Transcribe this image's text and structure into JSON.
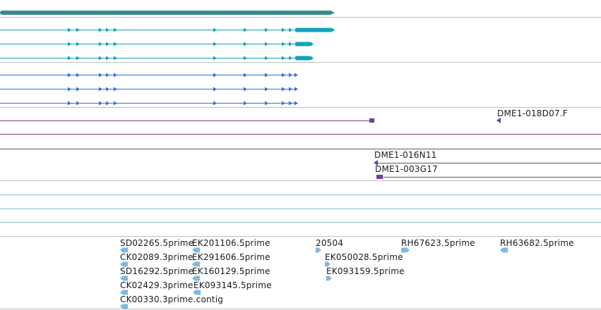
{
  "colors": {
    "separator": "#bfbfbf",
    "gene_bar": "#3a8a8a",
    "transcript_main": "#0fa3b8",
    "transcript_alt": "#2f6fd8",
    "construct": "#6b3fa0",
    "construct_line": "#7a4a7a",
    "empty_track_line": "#7ec3cf",
    "est": "#7fb8e0"
  },
  "clone_labels": {
    "dme1_018d07_f": "DME1-018D07.F",
    "dme1_016n11": "DME1-016N11",
    "dme1_003g17": "DME1-003G17"
  },
  "est_labels": {
    "sd02265": "SD02265.5prime",
    "ek201106": "EK201106.5prime",
    "n20504": "20504",
    "rh67623": "RH67623.5prime",
    "rh63682": "RH63682.5prime",
    "ck02089": "CK02089.3prime",
    "ek291606": "EK291606.5prime",
    "ek050028": "EK050028.5prime",
    "sd16292": "SD16292.5prime",
    "ek160129": "EK160129.5prime",
    "ek093159": "EK093159.5prime",
    "ck02429": "CK02429.3prime",
    "ek093145": "EK093145.5prime",
    "ck00330": "CK00330.3prime.contig"
  }
}
